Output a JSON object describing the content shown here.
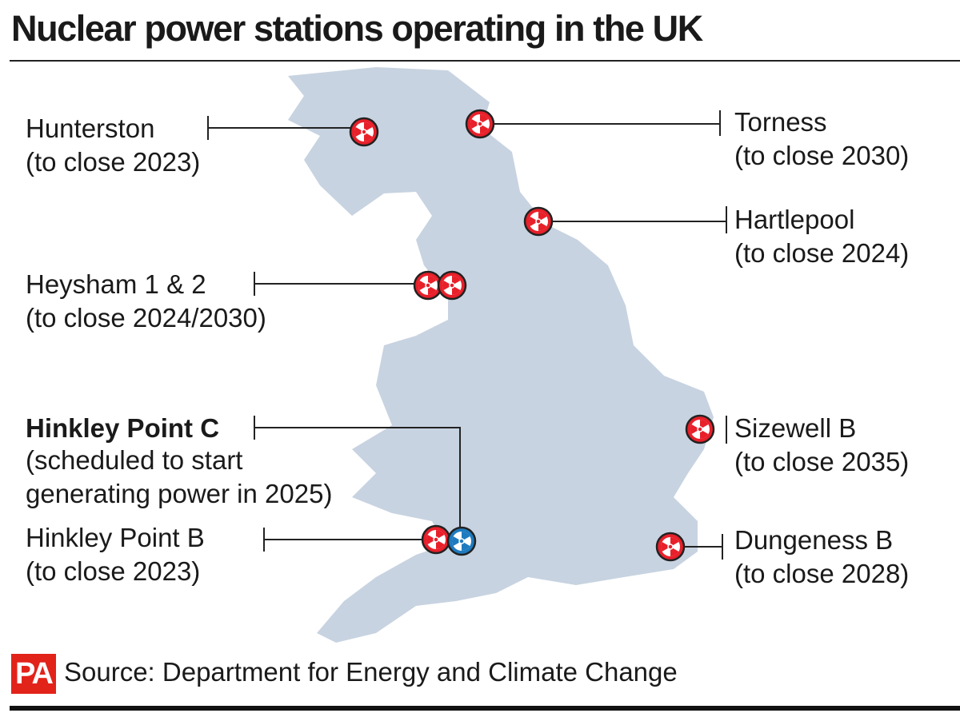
{
  "title": "Nuclear power stations operating in the UK",
  "stations": [
    {
      "name": "Hunterston",
      "note": [
        "(to close 2023)"
      ]
    },
    {
      "name": "Torness",
      "note": [
        "(to close 2030)"
      ]
    },
    {
      "name": "Hartlepool",
      "note": [
        "(to close 2024)"
      ]
    },
    {
      "name": "Heysham 1 & 2",
      "note": [
        "(to close 2024/2030)"
      ]
    },
    {
      "name": "Hinkley Point C",
      "note": [
        "(scheduled to start",
        "generating power in 2025)"
      ]
    },
    {
      "name": "Sizewell B",
      "note": [
        "(to close 2035)"
      ]
    },
    {
      "name": "Hinkley Point B",
      "note": [
        "(to close 2023)"
      ]
    },
    {
      "name": "Dungeness B",
      "note": [
        "(to close 2028)"
      ]
    }
  ],
  "logo": "PA",
  "source": "Source: Department for Energy and Climate Change"
}
